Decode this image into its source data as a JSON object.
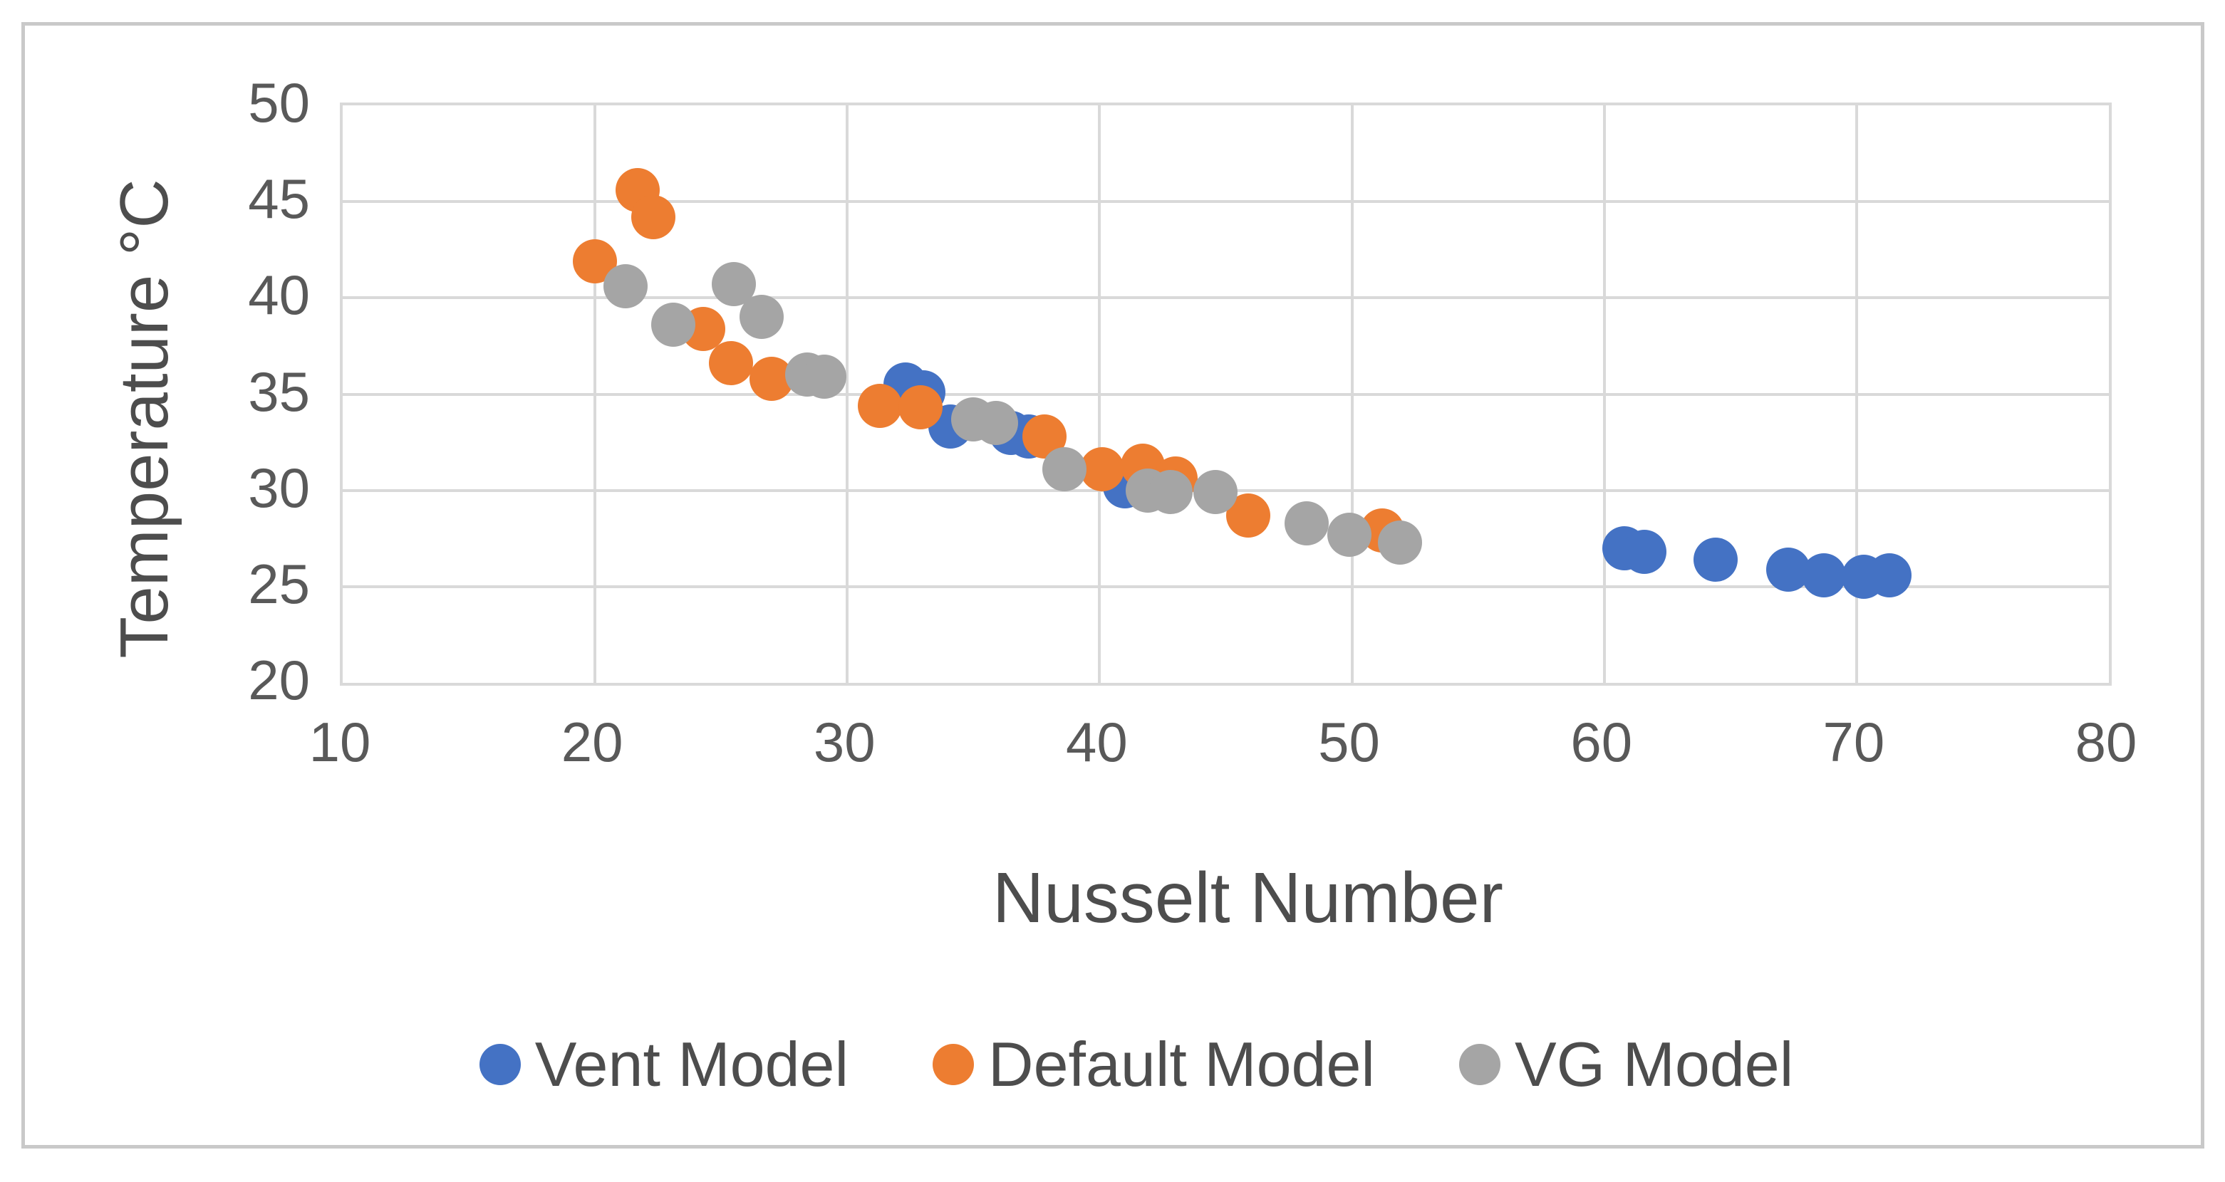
{
  "chart_data": {
    "type": "scatter",
    "title": "",
    "xlabel": "Nusselt Number",
    "ylabel": "Temperature °C",
    "xlim": [
      10,
      80
    ],
    "ylim": [
      20,
      50
    ],
    "x_ticks": [
      10,
      20,
      30,
      40,
      50,
      60,
      70,
      80
    ],
    "y_ticks": [
      20,
      25,
      30,
      35,
      40,
      45,
      50
    ],
    "grid": true,
    "legend_position": "bottom",
    "colors": {
      "accent_blue": "#4472C4",
      "accent_orange": "#ED7D31",
      "accent_gray": "#A5A5A5",
      "gridline": "#d9d9d9",
      "text": "#595959"
    },
    "series": [
      {
        "name": "Vent Model",
        "color": "#4472C4",
        "points": [
          [
            32.3,
            35.5
          ],
          [
            33.0,
            35.1
          ],
          [
            34.1,
            33.3
          ],
          [
            36.5,
            33.0
          ],
          [
            37.2,
            32.8
          ],
          [
            41.0,
            30.2
          ],
          [
            60.8,
            27.0
          ],
          [
            61.6,
            26.8
          ],
          [
            64.4,
            26.4
          ],
          [
            67.3,
            25.9
          ],
          [
            68.7,
            25.6
          ],
          [
            70.3,
            25.5
          ],
          [
            71.3,
            25.6
          ]
        ]
      },
      {
        "name": "Default Model",
        "color": "#ED7D31",
        "points": [
          [
            20.0,
            41.9
          ],
          [
            21.7,
            45.6
          ],
          [
            22.3,
            44.2
          ],
          [
            24.3,
            38.4
          ],
          [
            25.4,
            36.6
          ],
          [
            27.0,
            35.8
          ],
          [
            31.3,
            34.4
          ],
          [
            32.9,
            34.3
          ],
          [
            37.8,
            32.8
          ],
          [
            40.1,
            31.1
          ],
          [
            41.7,
            31.3
          ],
          [
            43.0,
            30.6
          ],
          [
            45.9,
            28.7
          ],
          [
            51.2,
            27.9
          ]
        ]
      },
      {
        "name": "VG Model",
        "color": "#A5A5A5",
        "points": [
          [
            21.2,
            40.6
          ],
          [
            23.1,
            38.6
          ],
          [
            25.5,
            40.7
          ],
          [
            26.6,
            39.0
          ],
          [
            28.4,
            36.0
          ],
          [
            29.1,
            35.9
          ],
          [
            35.0,
            33.7
          ],
          [
            35.9,
            33.5
          ],
          [
            38.6,
            31.1
          ],
          [
            41.9,
            30.0
          ],
          [
            42.8,
            29.9
          ],
          [
            44.6,
            29.9
          ],
          [
            48.2,
            28.3
          ],
          [
            49.9,
            27.7
          ],
          [
            51.9,
            27.3
          ]
        ]
      }
    ]
  }
}
